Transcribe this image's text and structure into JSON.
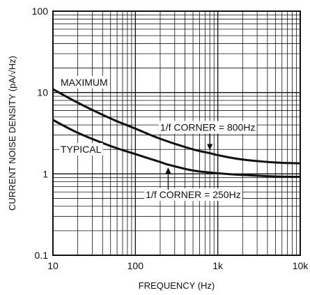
{
  "chart_data": {
    "type": "line",
    "xlabel": "FREQUENCY (Hz)",
    "ylabel": "CURRENT NOISE DENSITY (pA/√Hz)",
    "x_scale": "log",
    "y_scale": "log",
    "xlim": [
      10,
      10000
    ],
    "ylim": [
      0.1,
      100
    ],
    "grid": true,
    "x_ticks": [
      {
        "value": 10,
        "label": "10"
      },
      {
        "value": 100,
        "label": "100"
      },
      {
        "value": 1000,
        "label": "1k"
      },
      {
        "value": 10000,
        "label": "10k"
      }
    ],
    "y_ticks": [
      {
        "value": 0.1,
        "label": "0.1"
      },
      {
        "value": 1,
        "label": "1"
      },
      {
        "value": 10,
        "label": "10"
      },
      {
        "value": 100,
        "label": "100"
      }
    ],
    "series": [
      {
        "name": "MAXIMUM",
        "x": [
          10,
          20,
          50,
          100,
          200,
          500,
          800,
          1000,
          2000,
          5000,
          10000
        ],
        "y": [
          11,
          7.5,
          4.8,
          3.6,
          2.7,
          2.0,
          1.8,
          1.7,
          1.5,
          1.38,
          1.35
        ]
      },
      {
        "name": "TYPICAL",
        "x": [
          10,
          20,
          50,
          100,
          200,
          250,
          500,
          1000,
          2000,
          5000,
          10000
        ],
        "y": [
          4.6,
          3.2,
          2.2,
          1.75,
          1.4,
          1.3,
          1.1,
          1.02,
          0.97,
          0.93,
          0.92
        ]
      }
    ],
    "annotations": [
      {
        "text": "1/f CORNER = 800Hz",
        "x": 800,
        "y": 1.8,
        "arrow": "down"
      },
      {
        "text": "1/f CORNER = 250Hz",
        "x": 250,
        "y": 1.3,
        "arrow": "up"
      }
    ]
  }
}
